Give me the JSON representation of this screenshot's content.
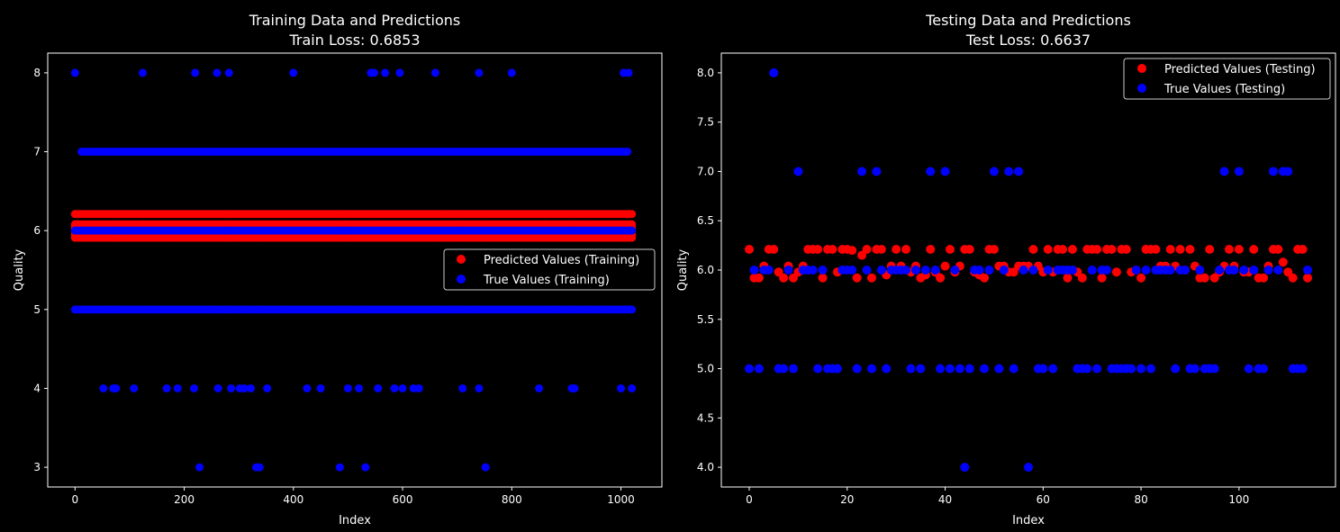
{
  "chart_data": [
    {
      "type": "scatter",
      "title": "Training Data and Predictions",
      "subtitle": "Train Loss: 0.6853",
      "xlabel": "Index",
      "ylabel": "Quality",
      "xlim": [
        -50,
        1075
      ],
      "ylim": [
        2.75,
        8.25
      ],
      "xticks": [
        0,
        200,
        400,
        600,
        800,
        1000
      ],
      "yticks": [
        3,
        4,
        5,
        6,
        7,
        8
      ],
      "legend_position": "center-right",
      "grid": false,
      "n_points": 1023,
      "series": [
        {
          "name": "Predicted Values (Training)",
          "color": "#ff0000",
          "values_by_range": [
            {
              "x_from": 0,
              "x_to": 1022,
              "y": [
                5.91,
                5.95,
                6.0,
                6.04,
                6.08,
                6.21
              ]
            }
          ]
        },
        {
          "name": "True Values (Training)",
          "color": "#0000ff",
          "values_by_range": [
            {
              "x_from": 0,
              "x_to": 1022,
              "y": [
                5,
                6
              ]
            },
            {
              "x_from": 12,
              "x_to": 1012,
              "y": [
                7
              ]
            }
          ],
          "outliers": {
            "8": [
              0,
              124,
              220,
              260,
              282,
              400,
              542,
              548,
              568,
              595,
              660,
              740,
              800,
              1005,
              1014
            ],
            "4": [
              52,
              70,
              75,
              108,
              168,
              188,
              218,
              262,
              286,
              302,
              310,
              322,
              352,
              425,
              450,
              500,
              520,
              555,
              585,
              600,
              620,
              630,
              710,
              740,
              850,
              910,
              915,
              1000,
              1020
            ],
            "3": [
              228,
              332,
              338,
              485,
              532,
              752
            ]
          }
        }
      ]
    },
    {
      "type": "scatter",
      "title": "Testing Data and Predictions",
      "subtitle": "Test Loss: 0.6637",
      "xlabel": "Index",
      "ylabel": "Quality",
      "xlim": [
        -5.7,
        119.7
      ],
      "ylim": [
        3.8,
        8.2
      ],
      "xticks": [
        0,
        20,
        40,
        60,
        80,
        100
      ],
      "yticks": [
        4.0,
        4.5,
        5.0,
        5.5,
        6.0,
        6.5,
        7.0,
        7.5,
        8.0
      ],
      "legend_position": "upper-right",
      "grid": false,
      "series": [
        {
          "name": "Predicted Values (Testing)",
          "color": "#ff0000",
          "x": [
            0,
            1,
            2,
            3,
            4,
            5,
            6,
            7,
            8,
            9,
            10,
            11,
            12,
            13,
            14,
            15,
            16,
            17,
            18,
            19,
            20,
            21,
            22,
            23,
            24,
            25,
            26,
            27,
            28,
            29,
            30,
            31,
            32,
            33,
            34,
            35,
            36,
            37,
            38,
            39,
            40,
            41,
            42,
            43,
            44,
            45,
            46,
            47,
            48,
            49,
            50,
            51,
            52,
            53,
            54,
            55,
            56,
            57,
            58,
            59,
            60,
            61,
            62,
            63,
            64,
            65,
            66,
            67,
            68,
            69,
            70,
            71,
            72,
            73,
            74,
            75,
            76,
            77,
            78,
            79,
            80,
            81,
            82,
            83,
            84,
            85,
            86,
            87,
            88,
            89,
            90,
            91,
            92,
            93,
            94,
            95,
            96,
            97,
            98,
            99,
            100,
            101,
            102,
            103,
            104,
            105,
            106,
            107,
            108,
            109,
            110,
            111,
            112,
            113,
            114
          ],
          "y": [
            6.21,
            5.92,
            5.92,
            6.04,
            6.21,
            6.21,
            5.98,
            5.92,
            6.04,
            5.92,
            5.98,
            6.04,
            6.21,
            6.21,
            6.21,
            5.92,
            6.21,
            6.21,
            5.98,
            6.21,
            6.21,
            6.2,
            5.92,
            6.15,
            6.21,
            5.92,
            6.21,
            6.21,
            5.95,
            6.04,
            6.21,
            6.04,
            6.21,
            5.98,
            6.04,
            5.92,
            5.95,
            6.21,
            5.98,
            5.92,
            6.04,
            6.21,
            5.98,
            6.04,
            6.21,
            6.21,
            5.98,
            5.95,
            5.92,
            6.21,
            6.21,
            6.04,
            6.04,
            5.98,
            5.98,
            6.04,
            6.04,
            6.04,
            6.21,
            6.04,
            5.98,
            6.21,
            5.98,
            6.21,
            6.21,
            5.92,
            6.21,
            5.98,
            5.92,
            6.21,
            6.21,
            6.21,
            5.92,
            6.21,
            6.21,
            5.98,
            6.21,
            6.21,
            5.98,
            6.0,
            5.92,
            6.21,
            6.21,
            6.21,
            6.04,
            6.04,
            6.21,
            6.04,
            6.21,
            6.0,
            6.21,
            6.04,
            5.92,
            5.92,
            6.21,
            5.92,
            5.98,
            6.04,
            6.21,
            6.04,
            6.21,
            5.98,
            5.98,
            6.21,
            5.92,
            5.92,
            6.04,
            6.21,
            6.21,
            6.08,
            5.98,
            5.92,
            6.21,
            6.21,
            5.92
          ]
        },
        {
          "name": "True Values (Testing)",
          "color": "#0000ff",
          "x": [
            0,
            1,
            2,
            3,
            4,
            5,
            6,
            7,
            8,
            9,
            10,
            11,
            12,
            13,
            14,
            15,
            16,
            17,
            18,
            19,
            20,
            21,
            22,
            23,
            24,
            25,
            26,
            27,
            28,
            29,
            30,
            31,
            32,
            33,
            34,
            35,
            36,
            37,
            38,
            39,
            40,
            41,
            42,
            43,
            44,
            45,
            46,
            47,
            48,
            49,
            50,
            51,
            52,
            53,
            54,
            55,
            56,
            57,
            58,
            59,
            60,
            61,
            62,
            63,
            64,
            65,
            66,
            67,
            68,
            69,
            70,
            71,
            72,
            73,
            74,
            75,
            76,
            77,
            78,
            79,
            80,
            81,
            82,
            83,
            84,
            85,
            86,
            87,
            88,
            89,
            90,
            91,
            92,
            93,
            94,
            95,
            96,
            97,
            98,
            99,
            100,
            101,
            102,
            103,
            104,
            105,
            106,
            107,
            108,
            109,
            110,
            111,
            112,
            113,
            114
          ],
          "y": [
            5,
            6,
            5,
            6,
            6,
            8,
            5,
            5,
            6,
            5,
            7,
            6,
            6,
            6,
            5,
            6,
            5,
            5,
            5,
            6,
            6,
            6,
            5,
            7,
            6,
            5,
            7,
            6,
            5,
            6,
            6,
            6,
            6,
            5,
            6,
            5,
            6,
            7,
            6,
            5,
            7,
            5,
            6,
            5,
            4,
            5,
            6,
            6,
            5,
            6,
            7,
            5,
            6,
            7,
            5,
            7,
            6,
            4,
            6,
            5,
            5,
            6,
            5,
            6,
            6,
            6,
            6,
            5,
            5,
            5,
            6,
            5,
            6,
            6,
            5,
            5,
            5,
            5,
            5,
            6,
            5,
            6,
            5,
            6,
            6,
            6,
            6,
            5,
            6,
            6,
            5,
            5,
            6,
            5,
            5,
            5,
            6,
            7,
            6,
            6,
            7,
            6,
            5,
            6,
            5,
            5,
            6,
            7,
            6,
            7,
            7,
            5,
            5,
            5,
            6
          ]
        }
      ]
    }
  ]
}
